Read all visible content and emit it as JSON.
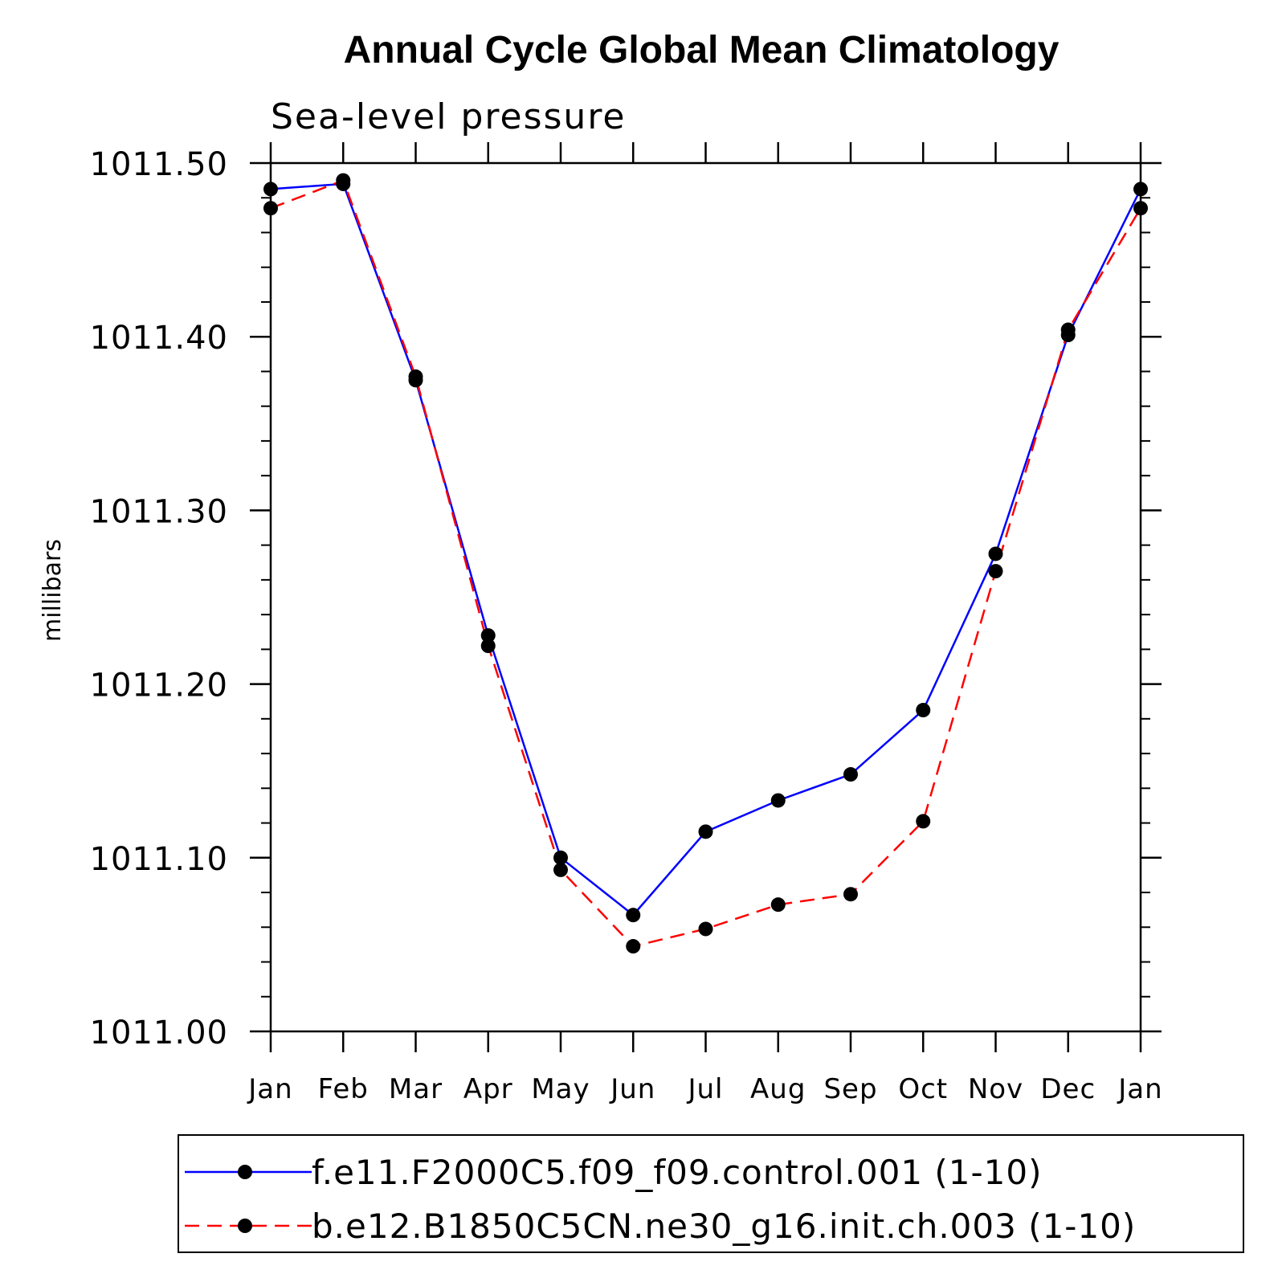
{
  "chart_data": {
    "type": "line",
    "title": "Annual Cycle Global Mean Climatology",
    "subtitle": "Sea-level pressure",
    "ylabel": "millibars",
    "xlabel": "",
    "ylim": [
      1011.0,
      1011.5
    ],
    "yticks": [
      "1011.00",
      "1011.10",
      "1011.20",
      "1011.30",
      "1011.40",
      "1011.50"
    ],
    "ytick_values": [
      1011.0,
      1011.1,
      1011.2,
      1011.3,
      1011.4,
      1011.5
    ],
    "categories": [
      "Jan",
      "Feb",
      "Mar",
      "Apr",
      "May",
      "Jun",
      "Jul",
      "Aug",
      "Sep",
      "Oct",
      "Nov",
      "Dec",
      "Jan"
    ],
    "legend_position": "bottom",
    "series": [
      {
        "name": "f.e11.F2000C5.f09_f09.control.001 (1-10)",
        "color": "#0000ff",
        "style": "solid",
        "marker_color": "#000000",
        "values": [
          1011.485,
          1011.488,
          1011.375,
          1011.228,
          1011.1,
          1011.067,
          1011.115,
          1011.133,
          1011.148,
          1011.185,
          1011.275,
          1011.401,
          1011.485
        ]
      },
      {
        "name": "b.e12.B1850C5CN.ne30_g16.init.ch.003 (1-10)",
        "color": "#ff0000",
        "style": "dashed",
        "marker_color": "#000000",
        "values": [
          1011.474,
          1011.49,
          1011.377,
          1011.222,
          1011.093,
          1011.049,
          1011.059,
          1011.073,
          1011.079,
          1011.121,
          1011.265,
          1011.404,
          1011.474
        ]
      }
    ]
  }
}
